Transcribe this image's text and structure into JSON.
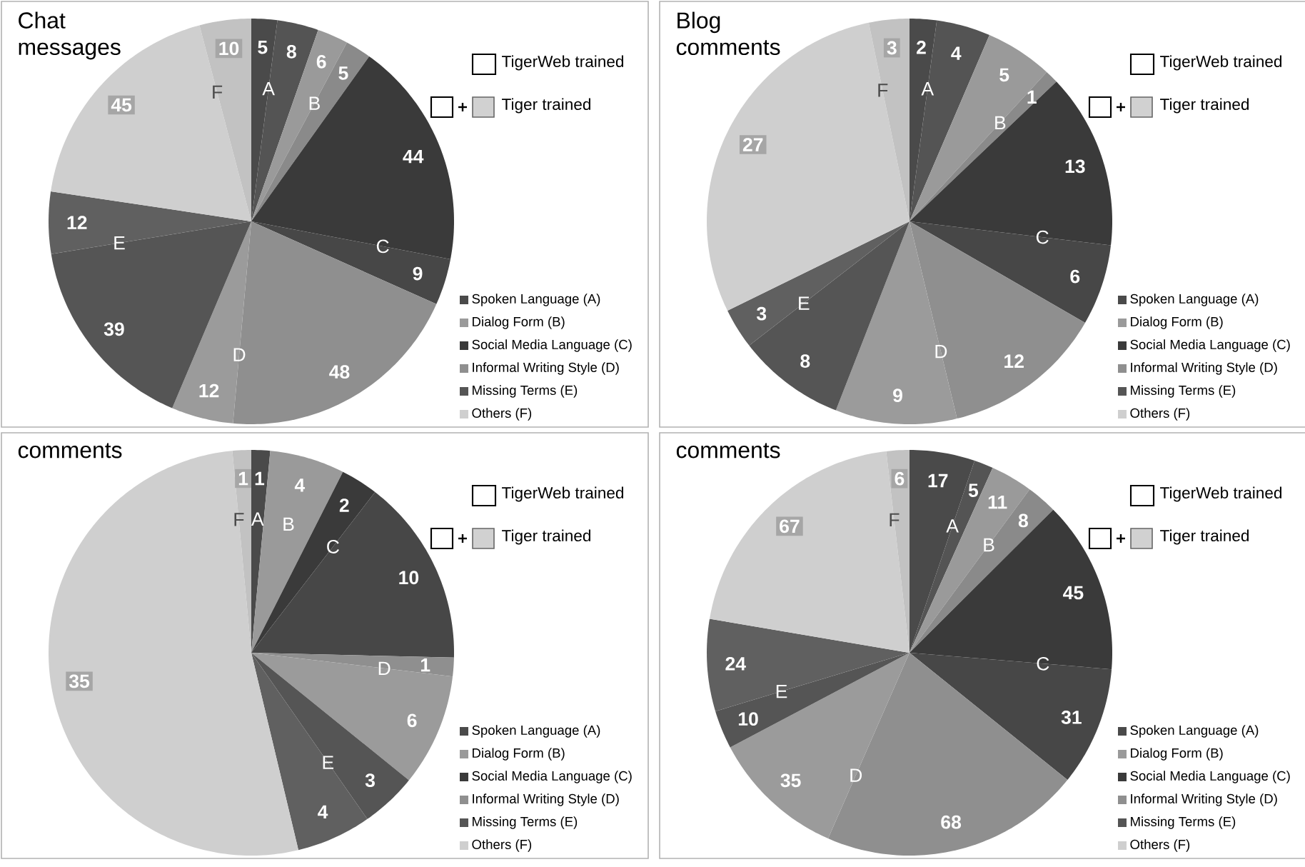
{
  "chart_data": [
    {
      "type": "pie",
      "title": "Chat messages",
      "categories": [
        "Spoken Language (A)",
        null,
        "Dialog Form (B)",
        null,
        "Social Media Language (C)",
        null,
        "Informal Writing Style (D)",
        null,
        "Missing Terms (E)",
        null,
        "Others (F)",
        null
      ],
      "values": [
        5,
        8,
        6,
        5,
        44,
        9,
        48,
        12,
        39,
        12,
        45,
        10
      ],
      "colors": [
        "#4a4a4a",
        "#545454",
        "#9a9a9a",
        "#8a8a8a",
        "#3a3a3a",
        "#474747",
        "#8f8f8f",
        "#9b9b9b",
        "#555555",
        "#606060",
        "#cfcfcf",
        "#c2c2c2"
      ],
      "data_labels": true,
      "legend": "bottom right",
      "annotations": [
        "A",
        "B",
        "C",
        "D",
        "E",
        "F",
        "TigerWeb trained",
        "Tiger trained"
      ]
    },
    {
      "type": "pie",
      "title": "Blog comments",
      "categories": [
        "Spoken Language (A)",
        null,
        "Dialog Form (B)",
        null,
        "Social Media Language (C)",
        null,
        "Informal Writing Style (D)",
        null,
        "Missing Terms (E)",
        null,
        "Others (F)",
        null
      ],
      "values": [
        2,
        4,
        5,
        1,
        13,
        6,
        12,
        9,
        8,
        3,
        27,
        3
      ],
      "colors": [
        "#4a4a4a",
        "#545454",
        "#9a9a9a",
        "#8a8a8a",
        "#3a3a3a",
        "#474747",
        "#8f8f8f",
        "#9b9b9b",
        "#555555",
        "#606060",
        "#cfcfcf",
        "#c2c2c2"
      ],
      "data_labels": true,
      "legend": "bottom right",
      "annotations": [
        "A",
        "B",
        "C",
        "D",
        "E",
        "F",
        "TigerWeb trained",
        "Tiger trained"
      ]
    },
    {
      "type": "pie",
      "title": "comments",
      "categories": [
        "Spoken Language (A)",
        null,
        "Dialog Form (B)",
        null,
        "Social Media Language (C)",
        null,
        "Informal Writing Style (D)",
        null,
        "Missing Terms (E)",
        null,
        "Others (F)",
        null
      ],
      "values": [
        1,
        null,
        4,
        null,
        2,
        10,
        1,
        6,
        3,
        4,
        35,
        1
      ],
      "colors": [
        "#4a4a4a",
        "#545454",
        "#9a9a9a",
        "#8a8a8a",
        "#3a3a3a",
        "#474747",
        "#8f8f8f",
        "#9b9b9b",
        "#555555",
        "#606060",
        "#cfcfcf",
        "#c2c2c2"
      ],
      "data_labels": true,
      "legend": "bottom right",
      "annotations": [
        "A",
        "B",
        "C",
        "D",
        "E",
        "F",
        "TigerWeb trained",
        "Tiger trained"
      ]
    },
    {
      "type": "pie",
      "title": "comments",
      "categories": [
        "Spoken Language (A)",
        null,
        "Dialog Form (B)",
        null,
        "Social Media Language (C)",
        null,
        "Informal Writing Style (D)",
        null,
        "Missing Terms (E)",
        null,
        "Others (F)",
        null
      ],
      "values": [
        17,
        5,
        11,
        8,
        45,
        31,
        68,
        35,
        10,
        24,
        67,
        6
      ],
      "colors": [
        "#4a4a4a",
        "#545454",
        "#9a9a9a",
        "#8a8a8a",
        "#3a3a3a",
        "#474747",
        "#8f8f8f",
        "#9b9b9b",
        "#555555",
        "#606060",
        "#cfcfcf",
        "#c2c2c2"
      ],
      "data_labels": true,
      "legend": "bottom right",
      "annotations": [
        "A",
        "B",
        "C",
        "D",
        "E",
        "F",
        "TigerWeb trained",
        "Tiger trained"
      ]
    }
  ]
}
